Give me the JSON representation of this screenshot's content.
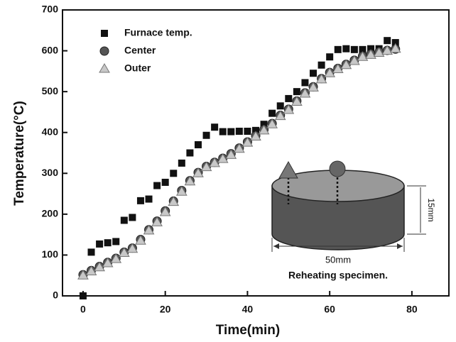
{
  "chart_data": {
    "type": "scatter",
    "x_label": "Time(min)",
    "y_label": "Temperature(°C)",
    "xlim": [
      -5,
      89
    ],
    "ylim": [
      0,
      700
    ],
    "xticks": [
      0,
      20,
      40,
      60,
      80
    ],
    "yticks": [
      0,
      100,
      200,
      300,
      400,
      500,
      600,
      700
    ],
    "legend": "upper left",
    "x": [
      0,
      2,
      4,
      6,
      8,
      10,
      12,
      14,
      16,
      18,
      20,
      22,
      24,
      26,
      28,
      30,
      32,
      34,
      36,
      38,
      40,
      42,
      44,
      46,
      48,
      50,
      52,
      54,
      56,
      58,
      60,
      62,
      64,
      66,
      68,
      70,
      72,
      74,
      76
    ],
    "series": [
      {
        "name": "Furnace temp.",
        "marker": "square",
        "color": "#111111",
        "values": [
          0,
          107,
          127,
          130,
          133,
          185,
          192,
          233,
          237,
          270,
          278,
          300,
          325,
          350,
          370,
          393,
          413,
          402,
          402,
          403,
          403,
          405,
          420,
          447,
          465,
          483,
          500,
          522,
          545,
          565,
          585,
          603,
          605,
          603,
          603,
          605,
          605,
          625,
          620
        ]
      },
      {
        "name": "Center",
        "marker": "circle",
        "color": "#555555",
        "values": [
          52,
          62,
          72,
          82,
          92,
          107,
          117,
          138,
          162,
          183,
          208,
          232,
          258,
          282,
          302,
          317,
          327,
          337,
          348,
          362,
          377,
          392,
          407,
          422,
          442,
          457,
          477,
          497,
          512,
          532,
          547,
          557,
          567,
          577,
          587,
          592,
          597,
          601,
          604
        ]
      },
      {
        "name": "Outer",
        "marker": "triangle",
        "color": "#c8c8c8",
        "values": [
          50,
          60,
          70,
          80,
          90,
          105,
          115,
          135,
          160,
          180,
          205,
          230,
          255,
          280,
          300,
          315,
          325,
          335,
          345,
          360,
          375,
          390,
          405,
          420,
          440,
          455,
          475,
          495,
          510,
          530,
          545,
          555,
          565,
          575,
          585,
          590,
          595,
          600,
          605
        ]
      }
    ],
    "annotations": [
      "15mm",
      "50mm",
      "Reheating specimen."
    ]
  }
}
